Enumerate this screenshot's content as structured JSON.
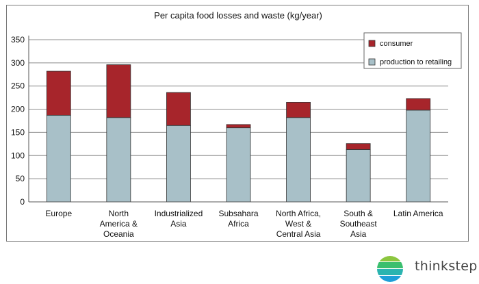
{
  "chart_data": {
    "type": "bar",
    "stacked": true,
    "title": "Per capita food losses and waste (kg/year)",
    "categories": [
      [
        "Europe"
      ],
      [
        "North",
        "America &",
        "Oceania"
      ],
      [
        "Industrialized",
        "Asia"
      ],
      [
        "Subsahara",
        "Africa"
      ],
      [
        "North Africa,",
        "West &",
        "Central Asia"
      ],
      [
        "South &",
        "Southeast",
        "Asia"
      ],
      [
        "Latin America"
      ]
    ],
    "series": [
      {
        "name": "production to retailing",
        "color": "#a8c0c8",
        "values": [
          187,
          182,
          165,
          160,
          182,
          113,
          198
        ]
      },
      {
        "name": "consumer",
        "color": "#a7252b",
        "values": [
          95,
          114,
          71,
          7,
          33,
          13,
          25
        ]
      }
    ],
    "legend_order": [
      "consumer",
      "production to retailing"
    ],
    "ylim": [
      0,
      350
    ],
    "yticks": [
      "0",
      "50",
      "100",
      "150",
      "200",
      "250",
      "300",
      "350"
    ],
    "grid": true,
    "legend_position": "top-right"
  },
  "brand": {
    "name": "thinkstep",
    "logo_icon": "thinkstep-logo-icon"
  }
}
